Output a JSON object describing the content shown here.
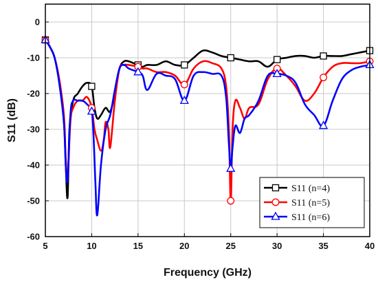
{
  "chart_data": {
    "type": "line",
    "title": "",
    "xlabel": "Frequency (GHz)",
    "ylabel": "S11 (dB)",
    "xlim": [
      5,
      40
    ],
    "ylim": [
      -60,
      5
    ],
    "xticks": [
      5,
      10,
      15,
      20,
      25,
      30,
      35,
      40
    ],
    "yticks": [
      0,
      -10,
      -20,
      -30,
      -40,
      -50,
      -60
    ],
    "grid": true,
    "legend_position": "bottom-right",
    "series": [
      {
        "name": "S11 (n=4)",
        "color": "#000000",
        "marker": "square",
        "marker_x": [
          5,
          10,
          15,
          20,
          25,
          30,
          35,
          40
        ],
        "x": [
          5,
          5.5,
          6,
          6.5,
          7,
          7.2,
          7.4,
          7.6,
          8,
          8.5,
          9,
          9.5,
          10,
          10.3,
          10.6,
          11,
          11.5,
          12,
          12.5,
          13,
          13.5,
          14,
          14.5,
          15,
          15.5,
          16,
          17,
          18,
          19,
          20,
          21,
          22,
          23,
          24,
          25,
          26,
          27,
          28,
          29,
          30,
          31,
          32,
          33,
          34,
          35,
          36,
          37,
          38,
          39,
          40
        ],
        "y": [
          -5,
          -7,
          -10,
          -17,
          -28,
          -40,
          -49,
          -30,
          -22,
          -20,
          -18,
          -17,
          -18,
          -24,
          -27,
          -26,
          -24,
          -25,
          -20,
          -13,
          -11,
          -11,
          -11.5,
          -12,
          -12.5,
          -12,
          -12,
          -11,
          -12,
          -12,
          -10,
          -8,
          -8.5,
          -9.5,
          -10,
          -10.5,
          -11,
          -11,
          -12.5,
          -10.5,
          -10,
          -9.5,
          -9.5,
          -10,
          -9.5,
          -9.5,
          -9.5,
          -9,
          -8.5,
          -8
        ]
      },
      {
        "name": "S11 (n=5)",
        "color": "#ff0000",
        "marker": "circle",
        "marker_x": [
          5,
          10,
          15,
          20,
          25,
          30,
          35,
          40
        ],
        "x": [
          5,
          5.5,
          6,
          6.5,
          7,
          7.2,
          7.4,
          7.7,
          8,
          8.5,
          9,
          9.5,
          10,
          10.3,
          10.6,
          11,
          11.3,
          11.5,
          11.8,
          12,
          12.5,
          13,
          13.5,
          14,
          15,
          15.5,
          16,
          17,
          18,
          19,
          20,
          21,
          22,
          23,
          24,
          24.5,
          24.8,
          25,
          25.2,
          25.5,
          26,
          26.5,
          27,
          28,
          29,
          30,
          31,
          32,
          33,
          34,
          35,
          36,
          37,
          38,
          39,
          40
        ],
        "y": [
          -5,
          -7,
          -10,
          -16,
          -26,
          -38,
          -44,
          -28,
          -24,
          -22,
          -22,
          -21,
          -24,
          -30,
          -33,
          -36,
          -33,
          -28,
          -30,
          -35,
          -22,
          -13,
          -12,
          -12,
          -12.5,
          -13,
          -13,
          -14,
          -14,
          -15,
          -17.5,
          -13,
          -11,
          -11.5,
          -13,
          -18,
          -30,
          -50,
          -30,
          -22,
          -24,
          -27,
          -24,
          -23,
          -16,
          -13,
          -15,
          -18,
          -22,
          -20,
          -15.5,
          -12.5,
          -11.5,
          -11.5,
          -11.5,
          -11
        ]
      },
      {
        "name": "S11 (n=6)",
        "color": "#0000ff",
        "marker": "triangle",
        "marker_x": [
          5,
          10,
          15,
          20,
          25,
          30,
          35,
          40
        ],
        "x": [
          5,
          5.5,
          6,
          6.5,
          7,
          7.2,
          7.4,
          7.7,
          8,
          8.5,
          9,
          9.5,
          10,
          10.2,
          10.4,
          10.6,
          11,
          11.5,
          12,
          12.5,
          13,
          13.5,
          14,
          15,
          15.5,
          16,
          17,
          18,
          19,
          20,
          21,
          22,
          23,
          24,
          24.5,
          24.8,
          25,
          25.2,
          25.5,
          26,
          26.5,
          27,
          28,
          29,
          30,
          31,
          32,
          33,
          34,
          35,
          36,
          37,
          38,
          39,
          40
        ],
        "y": [
          -5,
          -7,
          -10,
          -17,
          -28,
          -40,
          -44,
          -26,
          -22,
          -22,
          -22,
          -23,
          -25,
          -32,
          -45,
          -54,
          -40,
          -30,
          -26,
          -19,
          -13,
          -12,
          -13,
          -14,
          -15,
          -19,
          -14.5,
          -15,
          -16,
          -22,
          -15,
          -14,
          -14.5,
          -15,
          -21,
          -34,
          -41,
          -35,
          -29,
          -31,
          -27,
          -26,
          -22,
          -15,
          -14.5,
          -15,
          -17,
          -23,
          -26,
          -29,
          -22,
          -16,
          -13.5,
          -12.5,
          -12
        ]
      }
    ]
  }
}
